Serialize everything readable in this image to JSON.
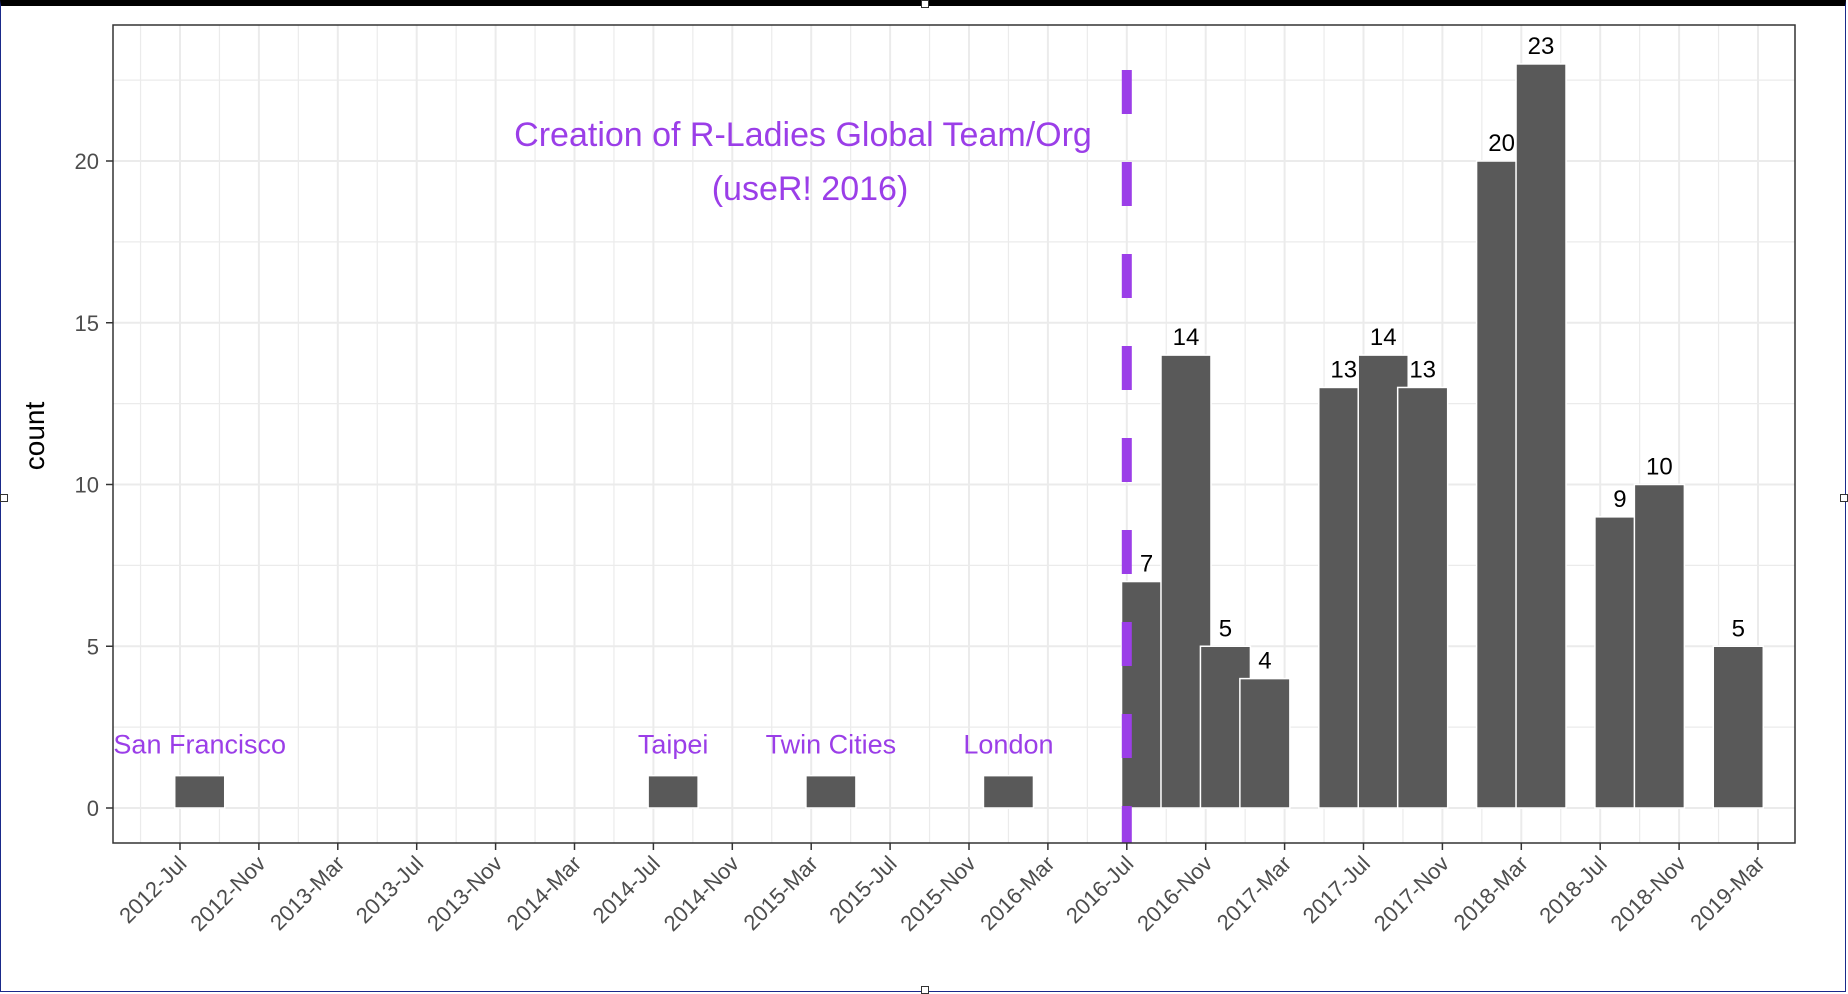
{
  "chart_data": {
    "type": "bar",
    "xlabel": "",
    "ylabel": "count",
    "ylim": [
      -1.1,
      24.6
    ],
    "yticks": [
      0,
      5,
      10,
      15,
      20
    ],
    "x_ticks": [
      "2012-Jul",
      "2012-Nov",
      "2013-Mar",
      "2013-Jul",
      "2013-Nov",
      "2014-Mar",
      "2014-Jul",
      "2014-Nov",
      "2015-Mar",
      "2015-Jul",
      "2015-Nov",
      "2016-Mar",
      "2016-Jul",
      "2016-Nov",
      "2017-Mar",
      "2017-Jul",
      "2017-Nov",
      "2018-Mar",
      "2018-Jul",
      "2018-Nov",
      "2019-Mar"
    ],
    "grid": true,
    "series": [
      {
        "bars": [
          {
            "x": "2012-Aug",
            "value": 1,
            "label": "San Francisco"
          },
          {
            "x": "2014-Aug",
            "value": 1,
            "label": "Taipei"
          },
          {
            "x": "2015-Apr",
            "value": 1,
            "label": "Twin Cities"
          },
          {
            "x": "2016-Jan",
            "value": 1,
            "label": "London"
          },
          {
            "x": "2016-Aug",
            "value": 7,
            "label": "7"
          },
          {
            "x": "2016-Oct",
            "value": 14,
            "label": "14"
          },
          {
            "x": "2016-Dec",
            "value": 5,
            "label": "5"
          },
          {
            "x": "2017-Feb",
            "value": 4,
            "label": "4"
          },
          {
            "x": "2017-Jun",
            "value": 13,
            "label": "13"
          },
          {
            "x": "2017-Aug",
            "value": 14,
            "label": "14"
          },
          {
            "x": "2017-Oct",
            "value": 13,
            "label": "13"
          },
          {
            "x": "2018-Feb",
            "value": 20,
            "label": "20"
          },
          {
            "x": "2018-Apr",
            "value": 23,
            "label": "23"
          },
          {
            "x": "2018-Aug",
            "value": 9,
            "label": "9"
          },
          {
            "x": "2018-Oct",
            "value": 10,
            "label": "10"
          },
          {
            "x": "2019-Feb",
            "value": 5,
            "label": "5"
          }
        ]
      }
    ],
    "vline": {
      "x": "2016-Jul",
      "style": "dashed"
    },
    "annotation": {
      "line1": "Creation of R-Ladies Global Team/Org",
      "line2": "(useR! 2016)"
    },
    "colors": {
      "bar": "#595959",
      "accent": "#9b3ee8",
      "grid": "#ebebeb",
      "panel_border": "#333333"
    }
  }
}
